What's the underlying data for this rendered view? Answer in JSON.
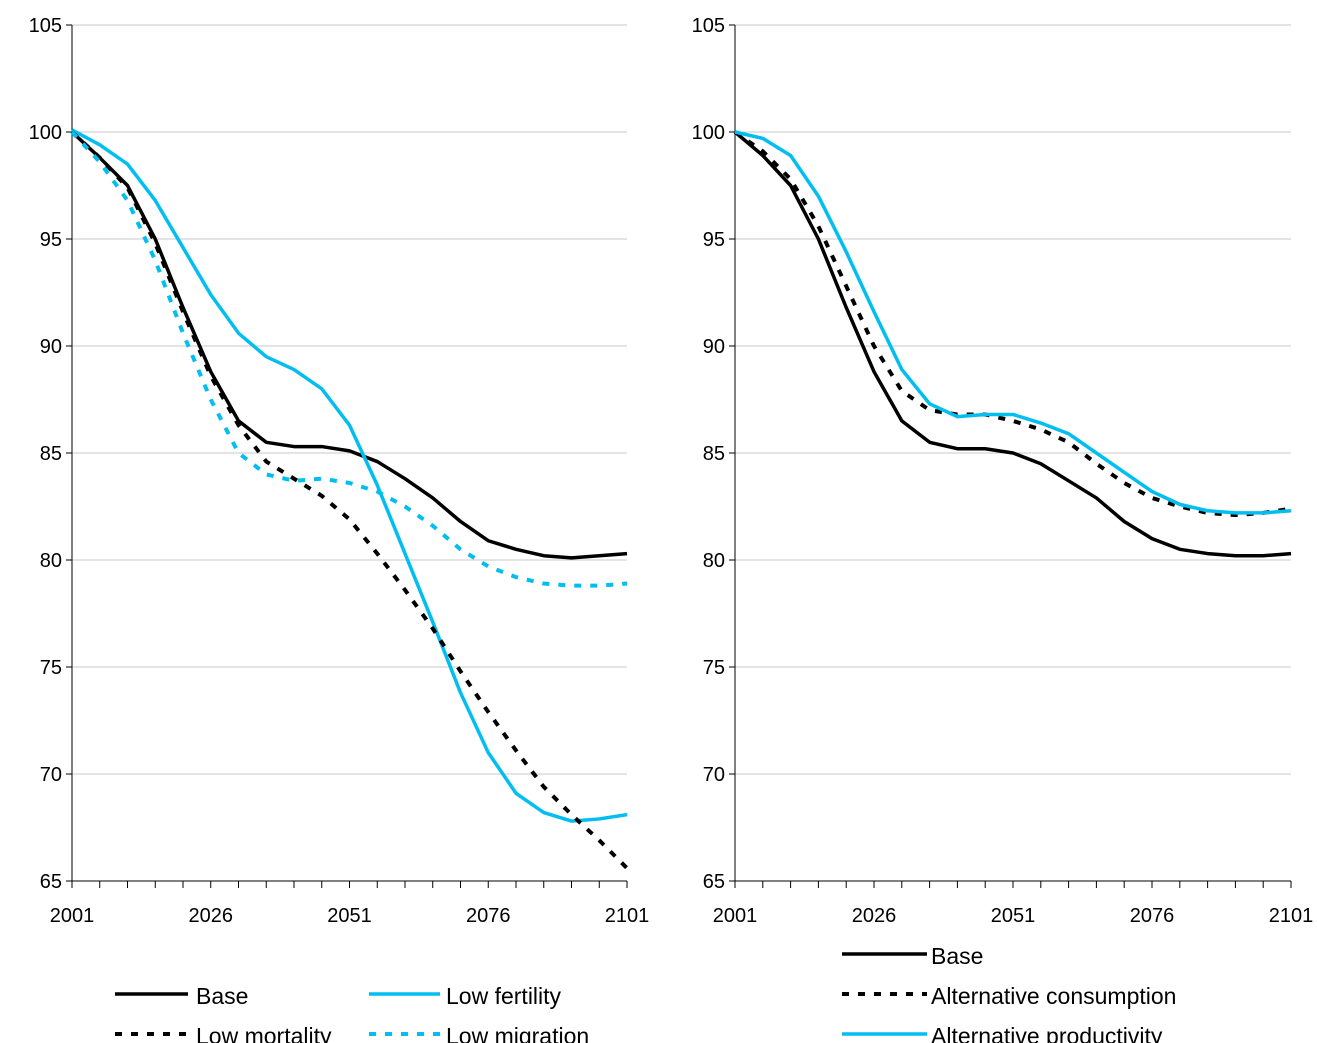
{
  "chart_data": [
    {
      "type": "line",
      "x": [
        2001,
        2006,
        2011,
        2016,
        2021,
        2026,
        2031,
        2036,
        2041,
        2046,
        2051,
        2056,
        2061,
        2066,
        2071,
        2076,
        2081,
        2086,
        2091,
        2096,
        2101
      ],
      "x_ticks": [
        "2001",
        "2026",
        "2051",
        "2076",
        "2101"
      ],
      "y_ticks": [
        "65",
        "70",
        "75",
        "80",
        "85",
        "90",
        "95",
        "100",
        "105"
      ],
      "xlim": [
        2001,
        2101
      ],
      "ylim": [
        65,
        105
      ],
      "grid": "horizontal",
      "legend_position": "bottom",
      "series": [
        {
          "name": "Base",
          "color": "#000000",
          "dash": "solid",
          "values": [
            100,
            98.8,
            97.5,
            95,
            91.8,
            88.8,
            86.5,
            85.5,
            85.3,
            85.3,
            85.1,
            84.6,
            83.8,
            82.9,
            81.8,
            80.9,
            80.5,
            80.2,
            80.1,
            80.2,
            80.3
          ]
        },
        {
          "name": "Low fertility",
          "color": "#00BFF0",
          "dash": "solid",
          "values": [
            100.1,
            99.4,
            98.5,
            96.8,
            94.6,
            92.4,
            90.6,
            89.5,
            88.9,
            88,
            86.3,
            83.5,
            80.3,
            77.1,
            73.8,
            71,
            69.1,
            68.2,
            67.8,
            67.9,
            68.1
          ]
        },
        {
          "name": "Low mortality",
          "color": "#000000",
          "dash": "dotted",
          "values": [
            100,
            98.8,
            97.4,
            94.8,
            91.6,
            88.6,
            86.3,
            84.6,
            83.8,
            83,
            81.9,
            80.3,
            78.6,
            76.8,
            74.8,
            72.9,
            71.1,
            69.4,
            68.1,
            66.9,
            65.6
          ]
        },
        {
          "name": "Low migration",
          "color": "#00BFF0",
          "dash": "dotted",
          "values": [
            100,
            98.6,
            96.8,
            94,
            90.6,
            87.5,
            85,
            84,
            83.7,
            83.8,
            83.6,
            83.2,
            82.5,
            81.6,
            80.5,
            79.7,
            79.2,
            78.9,
            78.8,
            78.8,
            78.9
          ]
        }
      ]
    },
    {
      "type": "line",
      "x": [
        2001,
        2006,
        2011,
        2016,
        2021,
        2026,
        2031,
        2036,
        2041,
        2046,
        2051,
        2056,
        2061,
        2066,
        2071,
        2076,
        2081,
        2086,
        2091,
        2096,
        2101
      ],
      "x_ticks": [
        "2001",
        "2026",
        "2051",
        "2076",
        "2101"
      ],
      "y_ticks": [
        "65",
        "70",
        "75",
        "80",
        "85",
        "90",
        "95",
        "100",
        "105"
      ],
      "xlim": [
        2001,
        2101
      ],
      "ylim": [
        65,
        105
      ],
      "grid": "horizontal",
      "legend_position": "bottom",
      "series": [
        {
          "name": "Base",
          "color": "#000000",
          "dash": "solid",
          "values": [
            100,
            98.9,
            97.5,
            95,
            91.8,
            88.8,
            86.5,
            85.5,
            85.2,
            85.2,
            85,
            84.5,
            83.7,
            82.9,
            81.8,
            81,
            80.5,
            80.3,
            80.2,
            80.2,
            80.3
          ]
        },
        {
          "name": "Alternative consumption",
          "color": "#000000",
          "dash": "dotted",
          "values": [
            100,
            99.1,
            97.8,
            95.6,
            92.8,
            90,
            87.9,
            87,
            86.8,
            86.8,
            86.5,
            86.1,
            85.5,
            84.5,
            83.6,
            82.9,
            82.5,
            82.2,
            82.1,
            82.2,
            82.4
          ]
        },
        {
          "name": "Alternative productivity",
          "color": "#00BFF0",
          "dash": "solid",
          "values": [
            100,
            99.7,
            98.9,
            97,
            94.4,
            91.6,
            88.9,
            87.3,
            86.7,
            86.8,
            86.8,
            86.4,
            85.9,
            85,
            84.1,
            83.2,
            82.6,
            82.3,
            82.2,
            82.2,
            82.3
          ]
        }
      ]
    }
  ]
}
